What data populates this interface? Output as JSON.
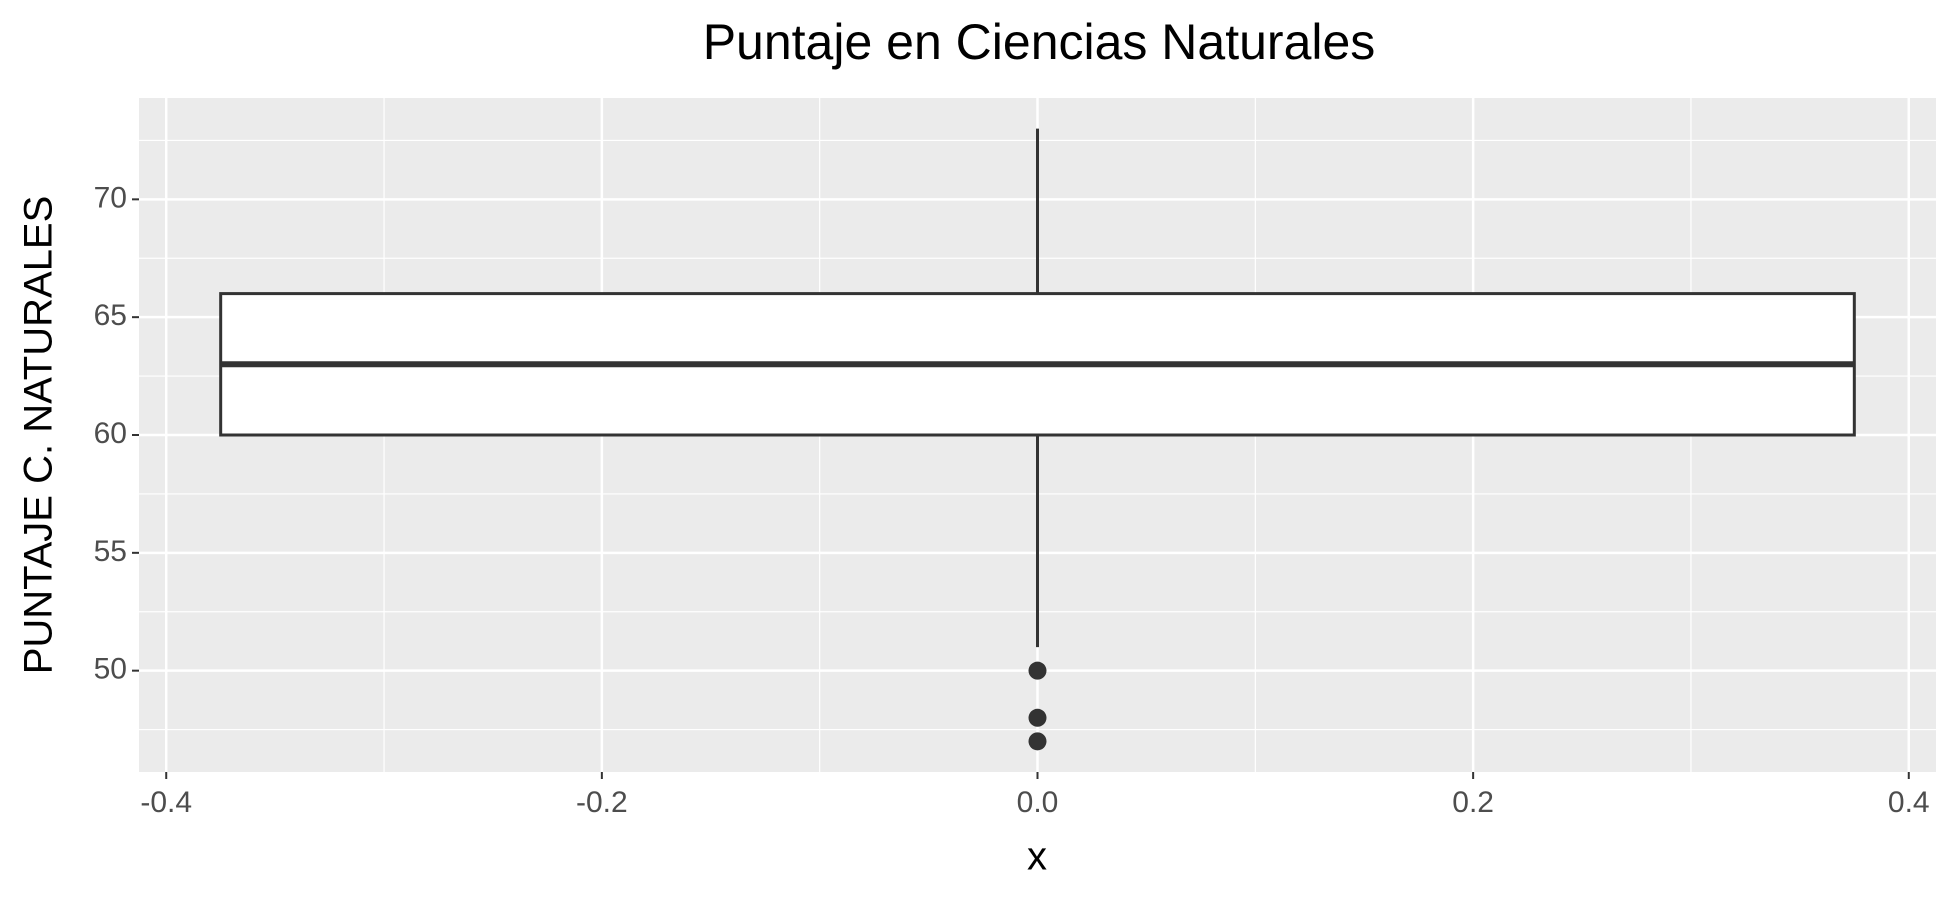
{
  "chart_data": {
    "type": "box",
    "title": "Puntaje en Ciencias Naturales",
    "x_label": "x",
    "y_label": "PUNTAJE C. NATURALES",
    "whisker_low": 51,
    "q1": 60,
    "median": 63,
    "q3": 66,
    "whisker_high": 73,
    "outliers": [
      50,
      48,
      47
    ],
    "xlim": [
      -0.4125,
      0.4125
    ],
    "xticks": [
      -0.4,
      -0.2,
      {
        "value": 0,
        "label": "0.0"
      },
      0.2,
      0.4
    ],
    "ylim": [
      45.7,
      74.3
    ],
    "yticks": [
      50,
      55,
      60,
      65,
      70
    ],
    "grid": true,
    "color": "#333333",
    "fill": "#ffffff",
    "panel_color": "#ebebeb"
  }
}
